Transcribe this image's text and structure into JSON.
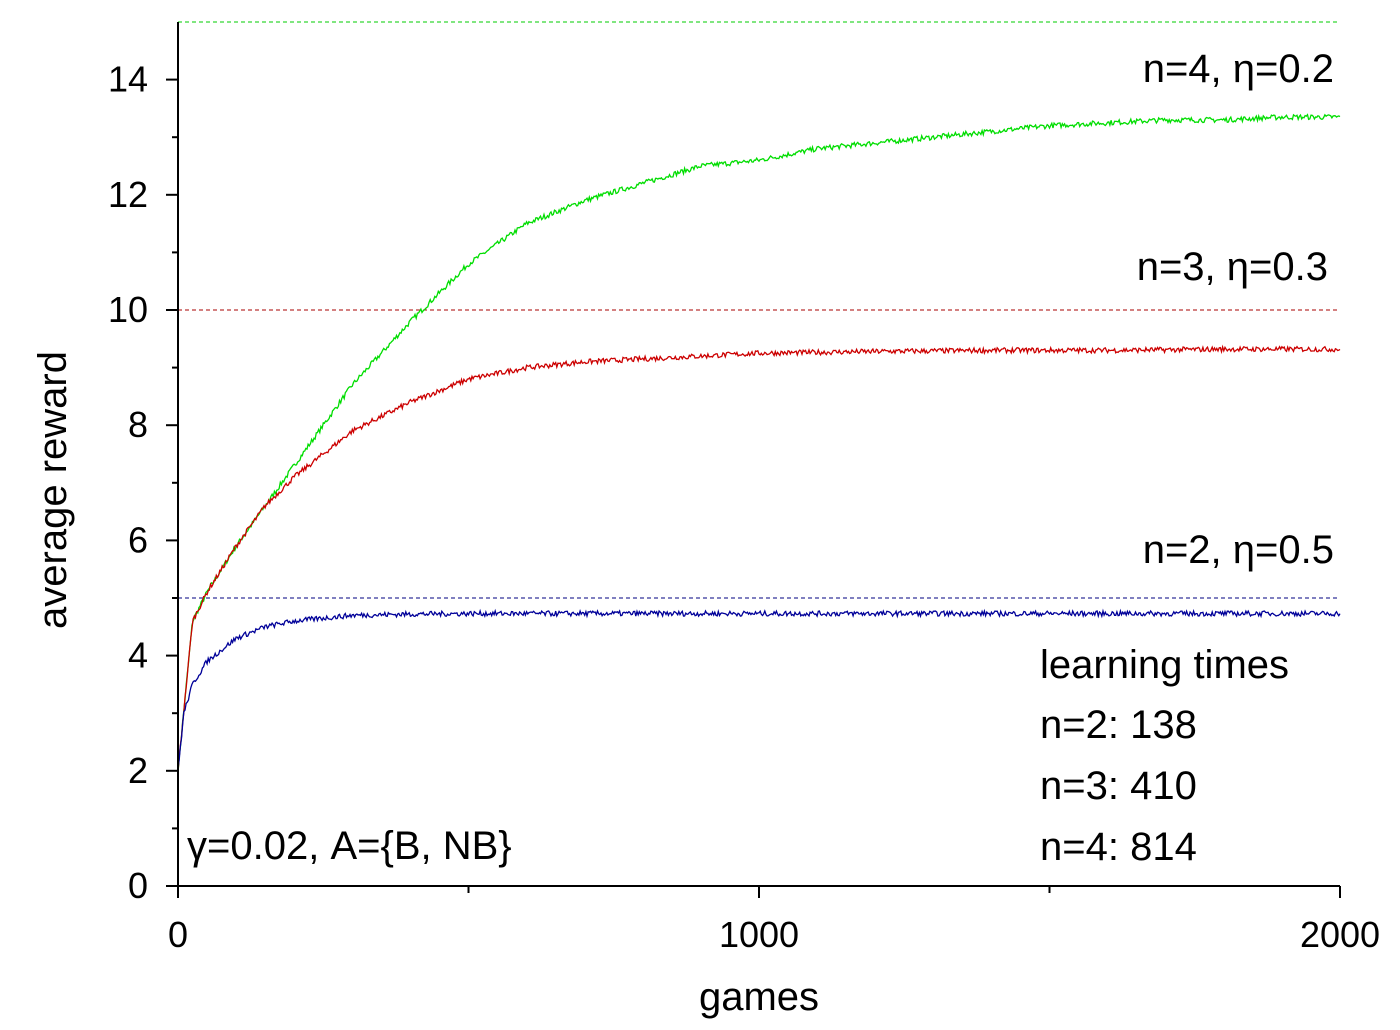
{
  "chart_data": {
    "type": "line",
    "xlabel": "games",
    "ylabel": "average reward",
    "xlim": [
      0,
      2000
    ],
    "ylim": [
      0,
      15
    ],
    "x_ticks": [
      0,
      1000,
      2000
    ],
    "x_tick_labels": [
      "0",
      "1000",
      "2000"
    ],
    "x_minor_ticks": [
      500,
      1500
    ],
    "y_ticks": [
      0,
      2,
      4,
      6,
      8,
      10,
      12,
      14
    ],
    "y_tick_labels": [
      "0",
      "2",
      "4",
      "6",
      "8",
      "10",
      "12",
      "14"
    ],
    "grid": false,
    "reference_lines": [
      {
        "y": 15,
        "color": "#00cc00"
      },
      {
        "y": 10,
        "color": "#aa0000"
      },
      {
        "y": 5,
        "color": "#000080"
      }
    ],
    "series": [
      {
        "color": "#00dd00",
        "label": "n=4, η=0.2",
        "x": [
          0,
          25,
          50,
          100,
          150,
          200,
          300,
          400,
          500,
          600,
          700,
          800,
          900,
          1000,
          1100,
          1200,
          1300,
          1400,
          1500,
          1600,
          1700,
          1800,
          1900,
          2000
        ],
        "y": [
          2.0,
          4.6,
          5.1,
          5.9,
          6.6,
          7.3,
          8.7,
          9.8,
          10.8,
          11.5,
          11.9,
          12.2,
          12.5,
          12.6,
          12.8,
          12.9,
          13.0,
          13.1,
          13.2,
          13.25,
          13.3,
          13.3,
          13.35,
          13.35
        ]
      },
      {
        "color": "#cc0000",
        "label": "n=3, η=0.3",
        "x": [
          0,
          25,
          50,
          100,
          150,
          200,
          300,
          400,
          500,
          600,
          700,
          800,
          900,
          1000,
          1200,
          1400,
          1600,
          1800,
          2000
        ],
        "y": [
          2.0,
          4.6,
          5.1,
          5.9,
          6.6,
          7.1,
          7.9,
          8.4,
          8.8,
          9.0,
          9.1,
          9.15,
          9.2,
          9.25,
          9.28,
          9.3,
          9.3,
          9.32,
          9.32
        ]
      },
      {
        "color": "#000099",
        "label": "n=2, η=0.5",
        "x": [
          0,
          10,
          25,
          50,
          100,
          150,
          200,
          250,
          300,
          400,
          500,
          700,
          1000,
          1500,
          2000
        ],
        "y": [
          2.0,
          3.0,
          3.5,
          3.9,
          4.3,
          4.5,
          4.6,
          4.65,
          4.7,
          4.72,
          4.73,
          4.73,
          4.73,
          4.73,
          4.73
        ]
      }
    ],
    "annotations": [
      "γ=0.02, A={B, NB}",
      "learning times",
      "n=2: 138",
      "n=3: 410",
      "n=4: 814"
    ]
  }
}
